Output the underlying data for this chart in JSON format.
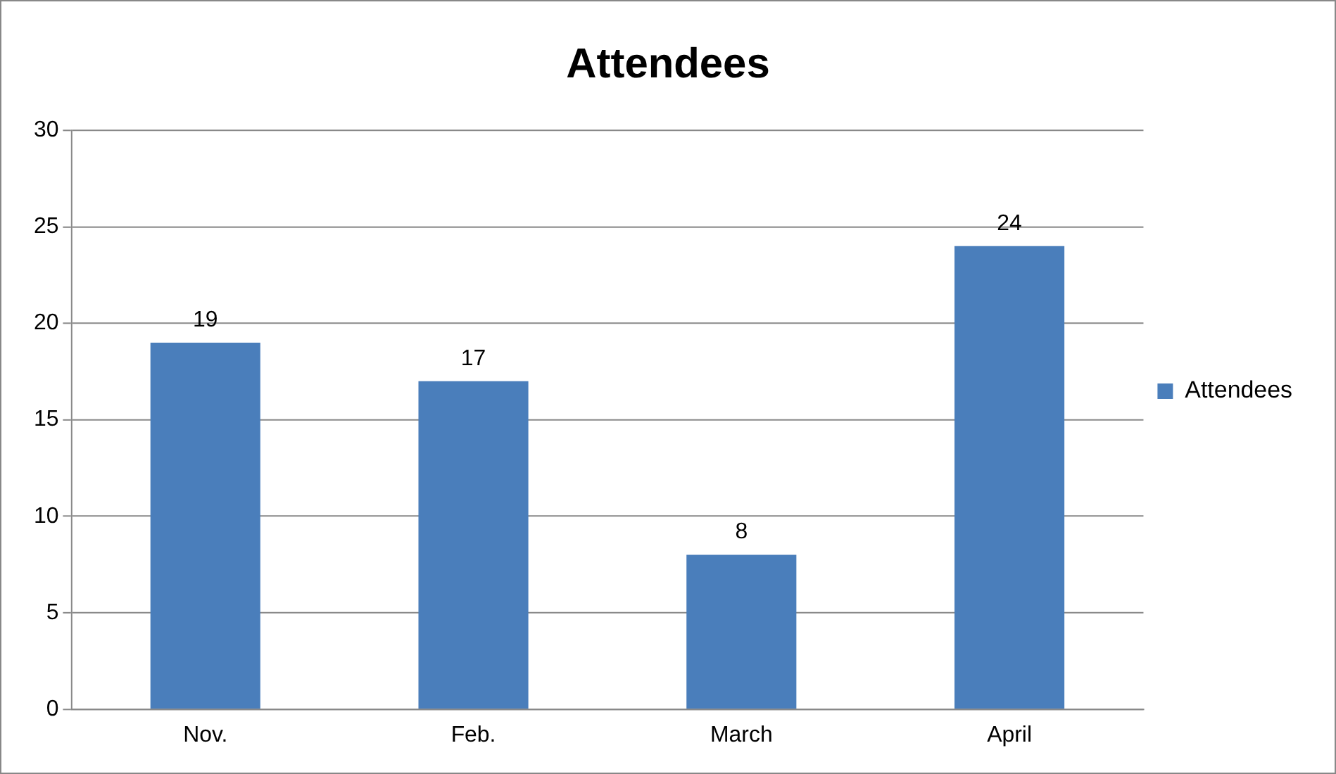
{
  "chart_data": {
    "type": "bar",
    "title": "Attendees",
    "categories": [
      "Nov.",
      "Feb.",
      "March",
      "April"
    ],
    "series": [
      {
        "name": "Attendees",
        "color": "#4a7ebb",
        "values": [
          19,
          17,
          8,
          24
        ]
      }
    ],
    "ylim": [
      0,
      30
    ],
    "yticks": [
      0,
      5,
      10,
      15,
      20,
      25,
      30
    ],
    "grid": "y",
    "legend": "right",
    "data_labels": true
  }
}
